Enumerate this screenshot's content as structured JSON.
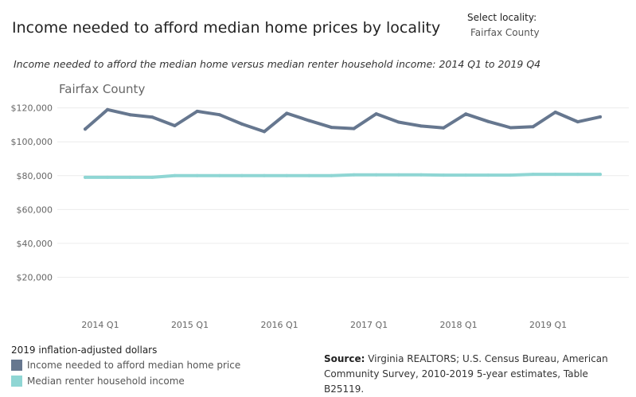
{
  "header": {
    "title": "Income needed to afford median home prices by locality",
    "select_label": "Select locality:",
    "select_value": "Fairfax County",
    "subtitle": "Income needed to afford the median home versus median renter household income: 2014 Q1 to 2019 Q4"
  },
  "chart_data": {
    "type": "line",
    "title": "Fairfax County",
    "xlabel": "",
    "ylabel": "",
    "x": [
      "2014 Q1",
      "2014 Q2",
      "2014 Q3",
      "2014 Q4",
      "2015 Q1",
      "2015 Q2",
      "2015 Q3",
      "2015 Q4",
      "2016 Q1",
      "2016 Q2",
      "2016 Q3",
      "2016 Q4",
      "2017 Q1",
      "2017 Q2",
      "2017 Q3",
      "2017 Q4",
      "2018 Q1",
      "2018 Q2",
      "2018 Q3",
      "2018 Q4",
      "2019 Q1",
      "2019 Q2",
      "2019 Q3",
      "2019 Q4"
    ],
    "xticks": [
      "2014 Q1",
      "2015 Q1",
      "2016 Q1",
      "2017 Q1",
      "2018 Q1",
      "2019 Q1"
    ],
    "yticks": [
      {
        "value": 20000,
        "label": "$20,000"
      },
      {
        "value": 40000,
        "label": "$40,000"
      },
      {
        "value": 60000,
        "label": "$60,000"
      },
      {
        "value": 80000,
        "label": "$80,000"
      },
      {
        "value": 100000,
        "label": "$100,000"
      },
      {
        "value": 120000,
        "label": "$120,000"
      }
    ],
    "ylim": [
      0,
      125000
    ],
    "grid": true,
    "series": [
      {
        "name": "Income needed to afford median home price",
        "color": "#66778f",
        "values": [
          107500,
          119000,
          116000,
          114500,
          109500,
          118000,
          116000,
          110500,
          106000,
          116800,
          112500,
          108500,
          107800,
          116500,
          111600,
          109300,
          108200,
          116400,
          112000,
          108300,
          108900,
          117500,
          111800,
          114700
        ]
      },
      {
        "name": "Median renter household income",
        "color": "#8fd6d4",
        "values": [
          79000,
          79000,
          79000,
          79000,
          80000,
          80000,
          80000,
          80000,
          80000,
          80000,
          80000,
          80000,
          80500,
          80500,
          80500,
          80500,
          80300,
          80300,
          80300,
          80300,
          80800,
          80800,
          80800,
          80800
        ]
      }
    ]
  },
  "legend": {
    "title": "2019 inflation-adjusted dollars"
  },
  "source": {
    "label": "Source:",
    "text": " Virginia REALTORS; U.S. Census Bureau, American Community Survey, 2010-2019 5-year estimates, Table B25119."
  }
}
